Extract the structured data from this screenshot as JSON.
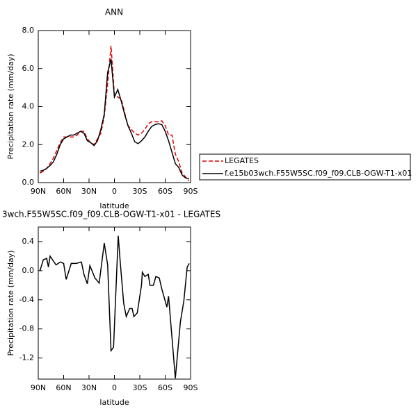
{
  "chart_data": [
    {
      "type": "line",
      "title": "ANN",
      "x_label": "latitude",
      "y_label": "Precipitation rate (mm/day)",
      "xlim": [
        90,
        -90
      ],
      "xticks": [
        {
          "value": 90,
          "label": "90N"
        },
        {
          "value": 60,
          "label": "60N"
        },
        {
          "value": 30,
          "label": "30N"
        },
        0,
        {
          "value": -30,
          "label": "30S"
        },
        {
          "value": -60,
          "label": "60S"
        },
        {
          "value": -90,
          "label": "90S"
        }
      ],
      "ylim": [
        0,
        8
      ],
      "yticks": [
        {
          "value": 0,
          "label": "0.0"
        },
        {
          "value": 2,
          "label": "2.0"
        },
        {
          "value": 4,
          "label": "4.0"
        },
        {
          "value": 6,
          "label": "6.0"
        },
        {
          "value": 8,
          "label": "8.0"
        }
      ],
      "legend": "right",
      "x": [
        88,
        84,
        80,
        76,
        72,
        68,
        64,
        60,
        56,
        52,
        48,
        44,
        40,
        36,
        32,
        28,
        24,
        20,
        16,
        12,
        8,
        4,
        0,
        -4,
        -8,
        -12,
        -16,
        -20,
        -24,
        -28,
        -32,
        -36,
        -40,
        -44,
        -48,
        -52,
        -56,
        -60,
        -64,
        -68,
        -72,
        -76,
        -80,
        -84,
        -88
      ],
      "series": [
        {
          "name": "LEGATES",
          "color": "#e00000",
          "line_style": "dashed",
          "values": [
            0.5,
            0.6,
            0.75,
            1.0,
            1.3,
            1.7,
            2.1,
            2.4,
            2.4,
            2.4,
            2.4,
            2.5,
            2.7,
            2.7,
            2.3,
            2.1,
            2.0,
            2.3,
            2.6,
            3.5,
            5.2,
            7.2,
            4.6,
            4.5,
            4.4,
            3.7,
            3.0,
            2.8,
            2.6,
            2.5,
            2.6,
            2.8,
            3.1,
            3.2,
            3.2,
            3.2,
            3.25,
            3.0,
            2.5,
            2.5,
            1.5,
            1.1,
            0.5,
            0.3,
            0.1
          ]
        },
        {
          "name": "f.e15b03wch.F55W5SC.f09_f09.CLB-OGW-T1-x01",
          "color": "#000000",
          "line_style": "solid",
          "values": [
            0.6,
            0.65,
            0.75,
            0.9,
            1.1,
            1.5,
            2.0,
            2.3,
            2.4,
            2.5,
            2.5,
            2.6,
            2.7,
            2.6,
            2.2,
            2.1,
            1.95,
            2.2,
            2.8,
            3.6,
            5.8,
            6.5,
            4.5,
            4.9,
            4.3,
            3.6,
            3.0,
            2.6,
            2.15,
            2.05,
            2.2,
            2.4,
            2.7,
            2.95,
            3.05,
            3.1,
            3.05,
            2.7,
            2.2,
            1.6,
            1.0,
            0.8,
            0.4,
            0.25,
            0.2
          ]
        }
      ]
    },
    {
      "type": "line",
      "title": "3wch.F55W5SC.f09_f09.CLB-OGW-T1-x01 - LEGATES",
      "x_label": "latitude",
      "y_label": "Precipitation rate (mm/day)",
      "xlim": [
        90,
        -90
      ],
      "xticks": [
        {
          "value": 90,
          "label": "90N"
        },
        {
          "value": 60,
          "label": "60N"
        },
        {
          "value": 30,
          "label": "30N"
        },
        0,
        {
          "value": -30,
          "label": "30S"
        },
        {
          "value": -60,
          "label": "60S"
        },
        {
          "value": -90,
          "label": "90S"
        }
      ],
      "ylim": [
        -1.49,
        0.6
      ],
      "yticks": [
        0.4,
        {
          "value": 0,
          "label": "0.0"
        },
        -0.4,
        -0.8,
        -1.2
      ],
      "x": [
        88,
        84,
        80,
        78,
        76,
        69,
        64,
        60,
        57,
        51,
        45,
        39,
        36,
        32,
        29,
        23,
        18,
        12,
        8,
        4,
        1,
        -4.5,
        -7,
        -11,
        -14,
        -18,
        -21,
        -23,
        -27,
        -32,
        -33,
        -36,
        -40,
        -42,
        -46,
        -49,
        -53,
        -56,
        -62,
        -64,
        -72,
        -78,
        -82,
        -86,
        -88.5
      ],
      "series": [
        {
          "color": "#000000",
          "line_style": "solid",
          "values": [
            0.0,
            0.15,
            0.17,
            0.05,
            0.2,
            0.08,
            0.12,
            0.1,
            -0.12,
            0.1,
            0.1,
            0.12,
            -0.05,
            -0.18,
            0.07,
            -0.1,
            -0.17,
            0.38,
            0.08,
            -1.1,
            -1.05,
            0.48,
            0.1,
            -0.45,
            -0.63,
            -0.52,
            -0.52,
            -0.63,
            -0.58,
            -0.2,
            -0.02,
            -0.08,
            -0.05,
            -0.2,
            -0.2,
            -0.08,
            -0.1,
            -0.25,
            -0.5,
            -0.35,
            -1.48,
            -0.7,
            -0.42,
            0.05,
            0.1
          ]
        }
      ]
    }
  ]
}
